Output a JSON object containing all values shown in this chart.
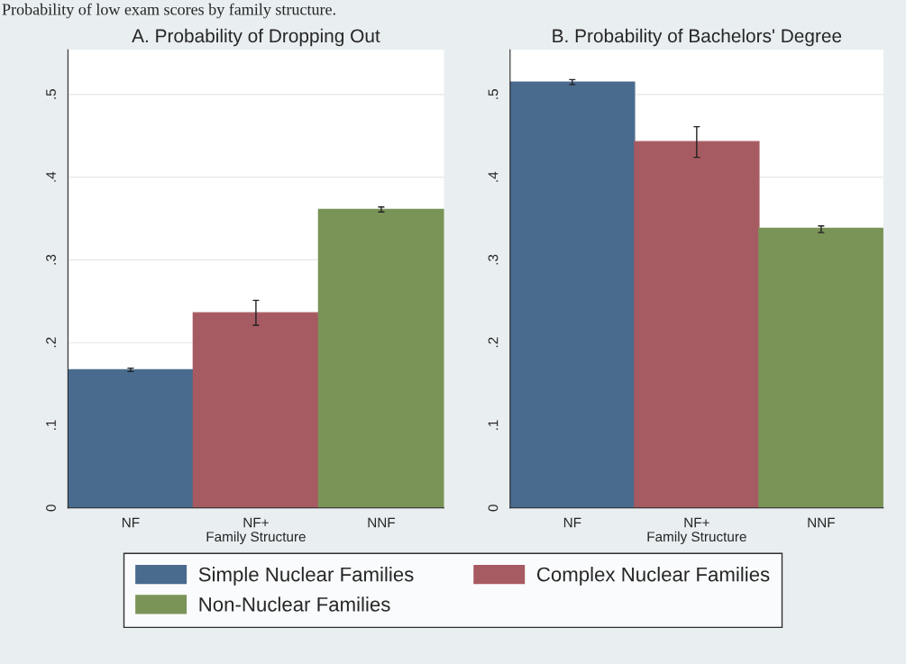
{
  "chart_data": [
    {
      "type": "bar",
      "title": "A. Probability of Dropping Out",
      "xlabel": "Family Structure",
      "categories": [
        "NF",
        "NF+",
        "NNF"
      ],
      "series": [
        {
          "name": "Simple Nuclear Families",
          "color": "#496b8e",
          "values": [
            0.167,
            null,
            null
          ],
          "errors": [
            [
              0.165,
              0.169
            ],
            null,
            null
          ]
        },
        {
          "name": "Complex Nuclear Families",
          "color": "#a65a61",
          "values": [
            null,
            0.236,
            null
          ],
          "errors": [
            null,
            [
              0.221,
              0.251
            ],
            null
          ]
        },
        {
          "name": "Non-Nuclear Families",
          "color": "#7a9458",
          "values": [
            null,
            null,
            0.361
          ],
          "errors": [
            null,
            null,
            [
              0.358,
              0.364
            ]
          ]
        }
      ],
      "ylim": [
        0,
        0.554
      ],
      "yticks": [
        {
          "value": 0,
          "label": "0"
        },
        {
          "value": 0.1,
          "label": ".1"
        },
        {
          "value": 0.2,
          "label": ".2"
        },
        {
          "value": 0.3,
          "label": ".3"
        },
        {
          "value": 0.4,
          "label": ".4"
        },
        {
          "value": 0.5,
          "label": ".5"
        }
      ],
      "grid": "y",
      "legend": "bottom",
      "annotations": [
        "Probability of low exam scores by family structure."
      ]
    },
    {
      "type": "bar",
      "title": "B. Probability of Bachelors' Degree",
      "xlabel": "Family Structure",
      "categories": [
        "NF",
        "NF+",
        "NNF"
      ],
      "series": [
        {
          "color": "#496b8e",
          "values": [
            0.515,
            null,
            null
          ],
          "errors": [
            [
              0.512,
              0.518
            ],
            null,
            null
          ]
        },
        {
          "color": "#a65a61",
          "values": [
            null,
            0.443,
            null
          ],
          "errors": [
            null,
            [
              0.424,
              0.461
            ],
            null
          ]
        },
        {
          "color": "#7a9458",
          "values": [
            null,
            null,
            0.338
          ],
          "errors": [
            null,
            null,
            [
              0.333,
              0.341
            ]
          ]
        }
      ],
      "ylim": [
        0,
        0.554
      ],
      "yticks": [
        {
          "value": 0,
          "label": "0"
        },
        {
          "value": 0.1,
          "label": ".1"
        },
        {
          "value": 0.2,
          "label": ".2"
        },
        {
          "value": 0.3,
          "label": ".3"
        },
        {
          "value": 0.4,
          "label": ".4"
        },
        {
          "value": 0.5,
          "label": ".5"
        }
      ],
      "grid": "y"
    }
  ]
}
